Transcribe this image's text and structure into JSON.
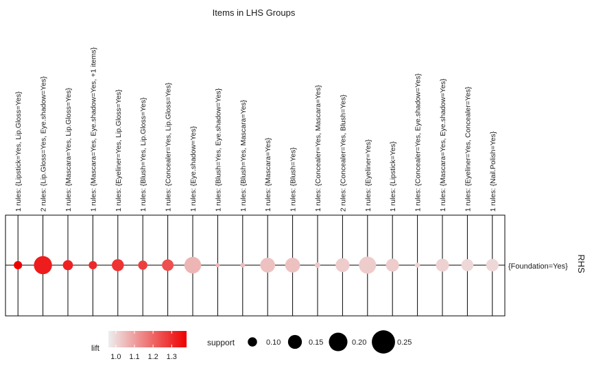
{
  "chart_data": {
    "type": "scatter",
    "title": "Items in LHS Groups",
    "xlabel": "",
    "ylabel": "RHS",
    "rhs_label": "{Foundation=Yes}",
    "colors": {
      "low": "#eeeeee",
      "high": "#ee0000",
      "line": "#000000"
    },
    "groups": [
      {
        "label": "1 rules: {Lipstick=Yes, Lip.Gloss=Yes}",
        "support": 0.09,
        "lift": 1.38
      },
      {
        "label": "2 rules: {Lip.Gloss=Yes, Eye.shadow=Yes}",
        "support": 0.195,
        "lift": 1.33
      },
      {
        "label": "1 rules: {Mascara=Yes, Lip.Gloss=Yes}",
        "support": 0.11,
        "lift": 1.32
      },
      {
        "label": "1 rules: {Mascara=Yes, Eye.shadow=Yes, +1 items}",
        "support": 0.09,
        "lift": 1.31
      },
      {
        "label": "1 rules: {Eyeliner=Yes, Lip.Gloss=Yes}",
        "support": 0.13,
        "lift": 1.29
      },
      {
        "label": "1 rules: {Blush=Yes, Lip.Gloss=Yes}",
        "support": 0.1,
        "lift": 1.27
      },
      {
        "label": "1 rules: {Concealer=Yes, Lip.Gloss=Yes}",
        "support": 0.125,
        "lift": 1.24
      },
      {
        "label": "1 rules: {Eye.shadow=Yes}",
        "support": 0.18,
        "lift": 1.06
      },
      {
        "label": "1 rules: {Blush=Yes, Eye.shadow=Yes}",
        "support": 0.045,
        "lift": 1.06
      },
      {
        "label": "1 rules: {Blush=Yes, Mascara=Yes}",
        "support": 0.05,
        "lift": 1.05
      },
      {
        "label": "1 rules: {Mascara=Yes}",
        "support": 0.16,
        "lift": 1.04
      },
      {
        "label": "1 rules: {Blush=Yes}",
        "support": 0.16,
        "lift": 1.04
      },
      {
        "label": "1 rules: {Concealer=Yes, Mascara=Yes}",
        "support": 0.06,
        "lift": 1.03
      },
      {
        "label": "2 rules: {Concealer=Yes, Blush=Yes}",
        "support": 0.15,
        "lift": 1.02
      },
      {
        "label": "1 rules: {Eyeliner=Yes}",
        "support": 0.185,
        "lift": 1.02
      },
      {
        "label": "1 rules: {Lipstick=Yes}",
        "support": 0.14,
        "lift": 1.02
      },
      {
        "label": "1 rules: {Concealer=Yes, Eye.shadow=Yes}",
        "support": 0.055,
        "lift": 1.01
      },
      {
        "label": "1 rules: {Mascara=Yes, Eye.shadow=Yes}",
        "support": 0.14,
        "lift": 1.01
      },
      {
        "label": "1 rules: {Eyeliner=Yes, Concealer=Yes}",
        "support": 0.13,
        "lift": 1.0
      },
      {
        "label": "1 rules: {Nail.Polish=Yes}",
        "support": 0.135,
        "lift": 1.0
      }
    ],
    "legend": {
      "placement": "bottom",
      "lift": {
        "title": "lift",
        "ticks": [
          "1.0",
          "1.1",
          "1.2",
          "1.3"
        ],
        "tick_values": [
          1.0,
          1.1,
          1.2,
          1.3
        ],
        "range": [
          0.96,
          1.38
        ]
      },
      "support": {
        "title": "support",
        "entries": [
          {
            "label": "0.10",
            "value": 0.1
          },
          {
            "label": "0.15",
            "value": 0.15
          },
          {
            "label": "0.20",
            "value": 0.2
          },
          {
            "label": "0.25",
            "value": 0.25
          }
        ]
      }
    },
    "grid": true
  }
}
